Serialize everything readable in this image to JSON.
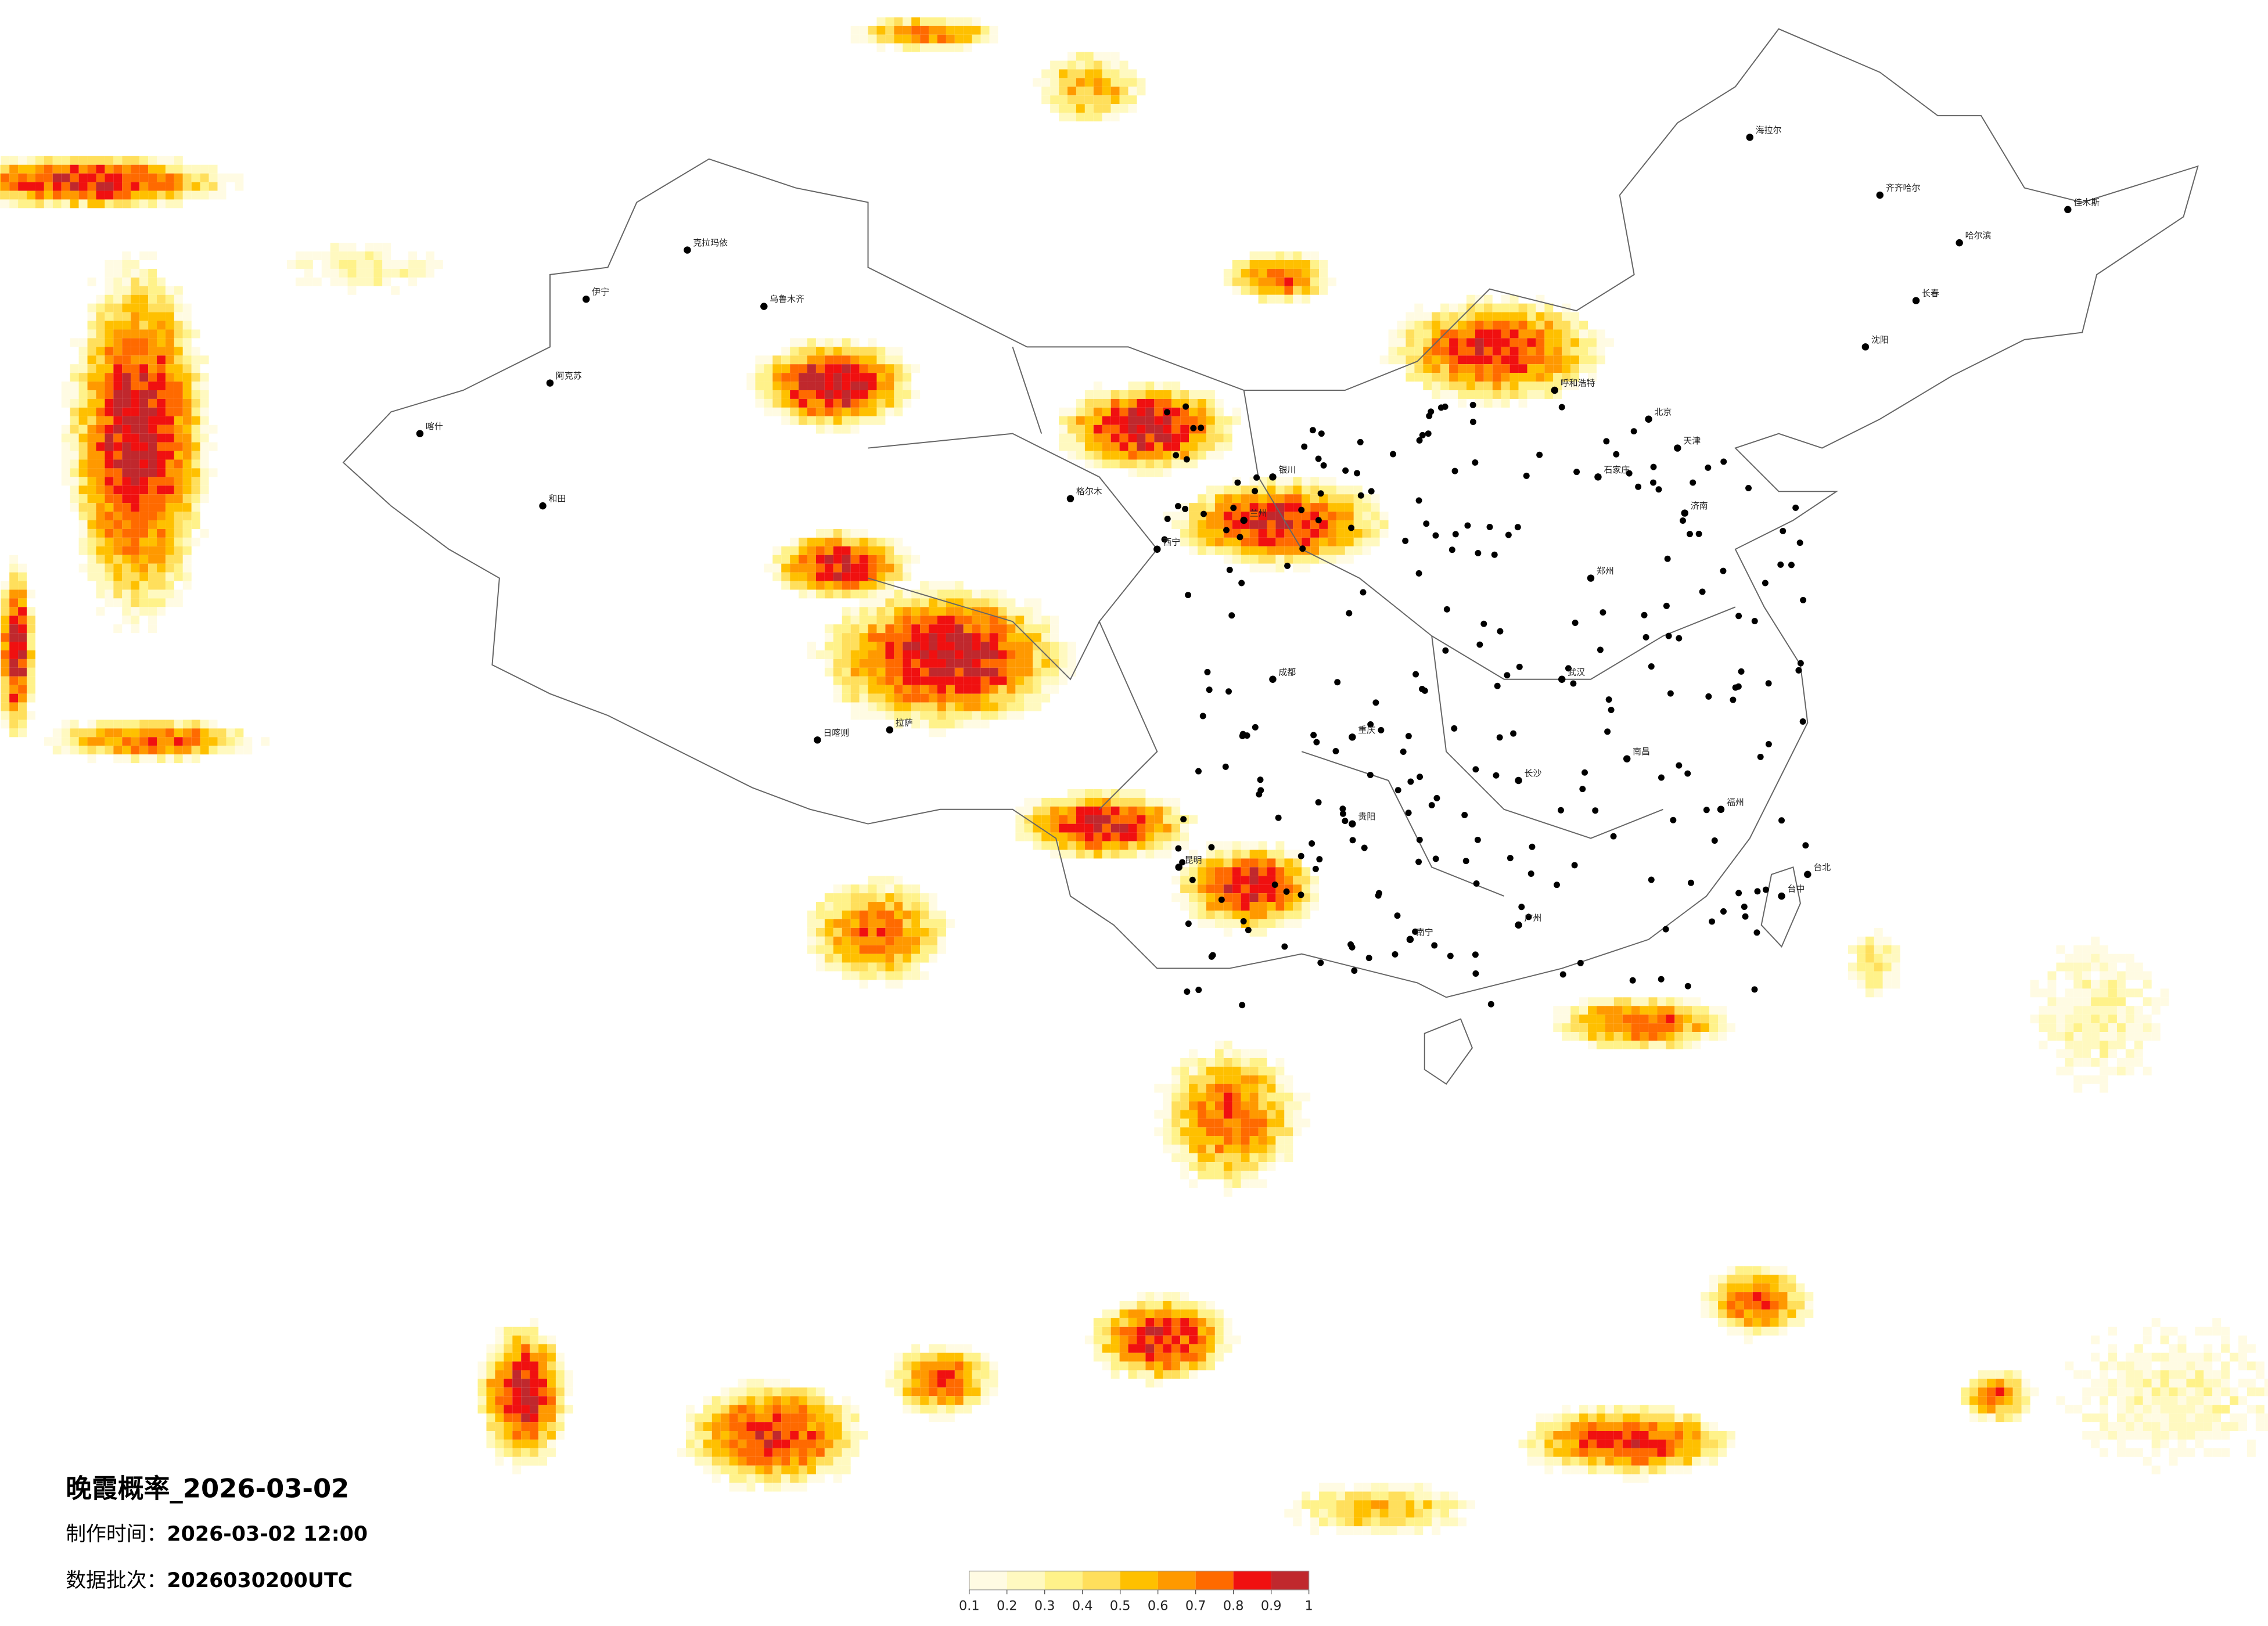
{
  "title": "晚霞概率_2026-03-02",
  "production_time": {
    "label": "制作时间：",
    "value": "2026-03-02 12:00"
  },
  "batch": {
    "label": "数据批次：",
    "value": "2026030200UTC"
  },
  "legend": {
    "colors": [
      "#fffbe3",
      "#fff9c0",
      "#fff28a",
      "#ffdf5c",
      "#ffc000",
      "#ff9900",
      "#ff6a00",
      "#f01010",
      "#c0282d"
    ],
    "ticks": [
      0.1,
      0.2,
      0.3,
      0.4,
      0.5,
      0.6,
      0.7,
      0.8,
      0.9,
      1
    ]
  },
  "cities": [
    "克拉玛依",
    "伊宁",
    "乌鲁木齐",
    "阿克苏",
    "和田",
    "喀什",
    "格尔木",
    "拉萨",
    "日喀则",
    "西宁",
    "兰州",
    "银川",
    "呼和浩特",
    "北京",
    "天津",
    "石家庄",
    "济南",
    "郑州",
    "武汉",
    "南昌",
    "长沙",
    "重庆",
    "成都",
    "贵阳",
    "昆明",
    "南宁",
    "广州",
    "福州",
    "台北",
    "台中",
    "哈尔滨",
    "长春",
    "沈阳",
    "齐齐哈尔",
    "海拉尔",
    "佳木斯"
  ]
}
